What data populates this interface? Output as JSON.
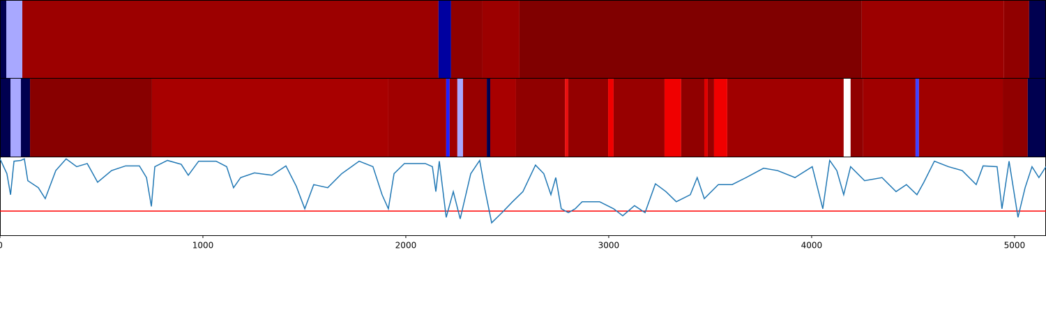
{
  "chart_data": {
    "type": "heatmap",
    "xlim": [
      0,
      5155
    ],
    "xticks": [
      0,
      1000,
      2000,
      3000,
      4000,
      5000
    ],
    "strips": [
      {
        "segments": [
          {
            "start": 0,
            "end": 31,
            "color": "#000050"
          },
          {
            "start": 31,
            "end": 110,
            "color": "#a8a8ff"
          },
          {
            "start": 110,
            "end": 2161,
            "color": "#9c0000"
          },
          {
            "start": 2161,
            "end": 2223,
            "color": "#0000a0"
          },
          {
            "start": 2223,
            "end": 2378,
            "color": "#900000"
          },
          {
            "start": 2378,
            "end": 2560,
            "color": "#9c0000"
          },
          {
            "start": 2560,
            "end": 4247,
            "color": "#800000"
          },
          {
            "start": 4247,
            "end": 4948,
            "color": "#9c0000"
          },
          {
            "start": 4948,
            "end": 5072,
            "color": "#900000"
          },
          {
            "start": 5072,
            "end": 5155,
            "color": "#000050"
          }
        ]
      },
      {
        "segments": [
          {
            "start": 0,
            "end": 52,
            "color": "#000050"
          },
          {
            "start": 52,
            "end": 103,
            "color": "#a8a8ff"
          },
          {
            "start": 103,
            "end": 148,
            "color": "#000050"
          },
          {
            "start": 148,
            "end": 749,
            "color": "#880000"
          },
          {
            "start": 749,
            "end": 1914,
            "color": "#a80000"
          },
          {
            "start": 1914,
            "end": 2199,
            "color": "#a00000"
          },
          {
            "start": 2199,
            "end": 2216,
            "color": "#2020ff"
          },
          {
            "start": 2216,
            "end": 2254,
            "color": "#a00000"
          },
          {
            "start": 2254,
            "end": 2282,
            "color": "#a8a8ff"
          },
          {
            "start": 2282,
            "end": 2399,
            "color": "#980000"
          },
          {
            "start": 2399,
            "end": 2416,
            "color": "#000050"
          },
          {
            "start": 2416,
            "end": 2543,
            "color": "#a80000"
          },
          {
            "start": 2543,
            "end": 2784,
            "color": "#900000"
          },
          {
            "start": 2784,
            "end": 2801,
            "color": "#e81010"
          },
          {
            "start": 2801,
            "end": 2997,
            "color": "#940000"
          },
          {
            "start": 2997,
            "end": 3024,
            "color": "#f00000"
          },
          {
            "start": 3024,
            "end": 3275,
            "color": "#980000"
          },
          {
            "start": 3275,
            "end": 3357,
            "color": "#f00000"
          },
          {
            "start": 3357,
            "end": 3471,
            "color": "#900000"
          },
          {
            "start": 3471,
            "end": 3488,
            "color": "#e00000"
          },
          {
            "start": 3488,
            "end": 3519,
            "color": "#980000"
          },
          {
            "start": 3519,
            "end": 3584,
            "color": "#f00000"
          },
          {
            "start": 3584,
            "end": 4158,
            "color": "#a00000"
          },
          {
            "start": 4158,
            "end": 4192,
            "color": "#ffffff"
          },
          {
            "start": 4192,
            "end": 4254,
            "color": "#900000"
          },
          {
            "start": 4254,
            "end": 4512,
            "color": "#a00000"
          },
          {
            "start": 4512,
            "end": 4529,
            "color": "#4040ff"
          },
          {
            "start": 4529,
            "end": 4942,
            "color": "#a00000"
          },
          {
            "start": 4942,
            "end": 5065,
            "color": "#900000"
          },
          {
            "start": 5065,
            "end": 5155,
            "color": "#000050"
          }
        ]
      }
    ],
    "line": {
      "color": "#1f77b4",
      "x": [
        0,
        34,
        52,
        69,
        103,
        120,
        137,
        189,
        223,
        275,
        326,
        378,
        430,
        481,
        550,
        619,
        687,
        722,
        746,
        763,
        825,
        893,
        928,
        979,
        1065,
        1117,
        1151,
        1186,
        1254,
        1340,
        1409,
        1460,
        1502,
        1546,
        1615,
        1684,
        1770,
        1838,
        1883,
        1914,
        1942,
        1993,
        2096,
        2131,
        2148,
        2165,
        2199,
        2234,
        2268,
        2320,
        2364,
        2388,
        2423,
        2474,
        2526,
        2577,
        2639,
        2680,
        2715,
        2739,
        2766,
        2801,
        2835,
        2869,
        2955,
        3024,
        3069,
        3127,
        3179,
        3230,
        3282,
        3333,
        3402,
        3436,
        3471,
        3540,
        3608,
        3677,
        3763,
        3832,
        3918,
        4003,
        4055,
        4089,
        4124,
        4158,
        4192,
        4261,
        4347,
        4416,
        4467,
        4519,
        4553,
        4605,
        4674,
        4742,
        4811,
        4845,
        4914,
        4938,
        4973,
        5017,
        5052,
        5086,
        5120,
        5155
      ],
      "values": [
        0.98,
        0.79,
        0.52,
        0.95,
        0.96,
        0.98,
        0.7,
        0.61,
        0.47,
        0.83,
        0.98,
        0.88,
        0.92,
        0.68,
        0.83,
        0.89,
        0.89,
        0.74,
        0.37,
        0.88,
        0.96,
        0.91,
        0.77,
        0.95,
        0.95,
        0.88,
        0.61,
        0.74,
        0.8,
        0.77,
        0.89,
        0.63,
        0.34,
        0.65,
        0.61,
        0.79,
        0.95,
        0.88,
        0.52,
        0.34,
        0.79,
        0.92,
        0.92,
        0.88,
        0.56,
        0.95,
        0.23,
        0.56,
        0.21,
        0.79,
        0.96,
        0.61,
        0.16,
        0.29,
        0.43,
        0.56,
        0.9,
        0.79,
        0.52,
        0.74,
        0.34,
        0.29,
        0.34,
        0.43,
        0.43,
        0.34,
        0.25,
        0.38,
        0.29,
        0.66,
        0.56,
        0.43,
        0.52,
        0.74,
        0.47,
        0.65,
        0.65,
        0.74,
        0.86,
        0.83,
        0.74,
        0.88,
        0.34,
        0.96,
        0.83,
        0.52,
        0.88,
        0.7,
        0.74,
        0.56,
        0.65,
        0.52,
        0.68,
        0.95,
        0.88,
        0.83,
        0.65,
        0.89,
        0.88,
        0.34,
        0.95,
        0.23,
        0.61,
        0.88,
        0.74,
        0.88
      ]
    },
    "ylim": [
      0,
      1
    ],
    "threshold": 0.31,
    "threshold_color": "#ff0000"
  }
}
